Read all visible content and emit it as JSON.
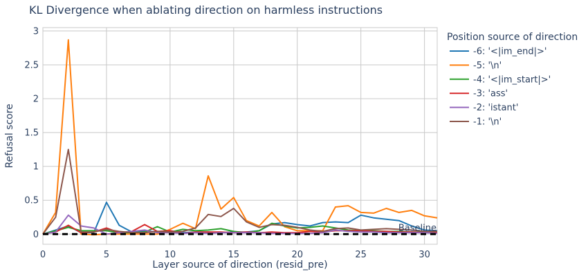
{
  "chart_data": {
    "type": "line",
    "title": "KL Divergence when ablating direction on harmless instructions",
    "xlabel": "Layer source of direction (resid_pre)",
    "ylabel": "Refusal score",
    "xlim": [
      0,
      31
    ],
    "ylim": [
      -0.15,
      3.05
    ],
    "xticks": [
      0,
      5,
      10,
      15,
      20,
      25,
      30
    ],
    "yticks": [
      0,
      0.5,
      1,
      1.5,
      2,
      2.5,
      3
    ],
    "ytick_labels": [
      "0",
      "0.5",
      "1",
      "1.5",
      "2",
      "2.5",
      "3"
    ],
    "grid": true,
    "legend": {
      "title": "Position source of direction",
      "placement": "right-outside"
    },
    "x": [
      0,
      1,
      2,
      3,
      4,
      5,
      6,
      7,
      8,
      9,
      10,
      11,
      12,
      13,
      14,
      15,
      16,
      17,
      18,
      19,
      20,
      21,
      22,
      23,
      24,
      25,
      26,
      27,
      28,
      29,
      30,
      31
    ],
    "series": [
      {
        "name": "-6: '<|im_end|>'",
        "color": "#1f77b4",
        "values": [
          0.0,
          0.06,
          0.12,
          0.02,
          0.02,
          0.47,
          0.13,
          0.03,
          0.05,
          0.03,
          0.05,
          0.02,
          0.03,
          0.03,
          0.02,
          0.03,
          0.03,
          0.05,
          0.15,
          0.17,
          0.14,
          0.12,
          0.17,
          0.18,
          0.17,
          0.28,
          0.24,
          0.22,
          0.2,
          0.12,
          0.06,
          0.05
        ]
      },
      {
        "name": "-5: '\\n'",
        "color": "#ff7f0e",
        "values": [
          0.0,
          0.32,
          2.87,
          0.0,
          -0.01,
          0.0,
          0.0,
          0.0,
          0.0,
          0.0,
          0.07,
          0.16,
          0.08,
          0.86,
          0.37,
          0.54,
          0.2,
          0.12,
          0.32,
          0.11,
          0.05,
          0.05,
          0.05,
          0.4,
          0.42,
          0.32,
          0.31,
          0.38,
          0.32,
          0.35,
          0.27,
          0.24
        ]
      },
      {
        "name": "-4: '<|im_start|>'",
        "color": "#2ca02c",
        "values": [
          0.0,
          0.05,
          0.1,
          0.05,
          0.05,
          0.05,
          0.02,
          0.02,
          0.03,
          0.11,
          0.03,
          0.07,
          0.05,
          0.06,
          0.08,
          0.04,
          0.02,
          0.05,
          0.16,
          0.12,
          0.09,
          0.1,
          0.12,
          0.09,
          0.06,
          0.05,
          0.05,
          0.04,
          0.04,
          0.03,
          0.03,
          0.02
        ]
      },
      {
        "name": "-3: 'ass'",
        "color": "#d62728",
        "values": [
          0.0,
          0.03,
          0.13,
          0.02,
          0.03,
          0.09,
          0.02,
          0.04,
          0.14,
          0.04,
          0.05,
          0.01,
          0.03,
          0.03,
          0.03,
          0.02,
          0.03,
          0.02,
          0.03,
          0.02,
          0.02,
          0.04,
          0.03,
          0.05,
          0.05,
          0.05,
          0.04,
          0.04,
          0.03,
          0.03,
          0.02,
          0.02
        ]
      },
      {
        "name": "-2: 'istant'",
        "color": "#9467bd",
        "values": [
          0.0,
          0.03,
          0.28,
          0.12,
          0.09,
          0.0,
          0.02,
          0.04,
          0.06,
          0.02,
          0.02,
          0.01,
          0.02,
          0.01,
          0.02,
          0.02,
          0.02,
          0.02,
          0.01,
          0.01,
          0.01,
          0.01,
          0.02,
          0.06,
          0.04,
          0.03,
          0.03,
          0.02,
          0.02,
          0.02,
          0.02,
          0.01
        ]
      },
      {
        "name": "-1: '\\n'",
        "color": "#8c564b",
        "values": [
          0.0,
          0.25,
          1.25,
          0.03,
          0.03,
          0.07,
          0.04,
          0.02,
          0.02,
          0.04,
          0.03,
          0.04,
          0.09,
          0.29,
          0.26,
          0.38,
          0.18,
          0.1,
          0.14,
          0.13,
          0.1,
          0.06,
          0.04,
          0.08,
          0.09,
          0.06,
          0.07,
          0.08,
          0.07,
          0.06,
          0.04,
          0.04
        ]
      }
    ],
    "baseline": {
      "label": "Baseline",
      "value": 0,
      "color": "#000000",
      "style": "dashed"
    }
  }
}
